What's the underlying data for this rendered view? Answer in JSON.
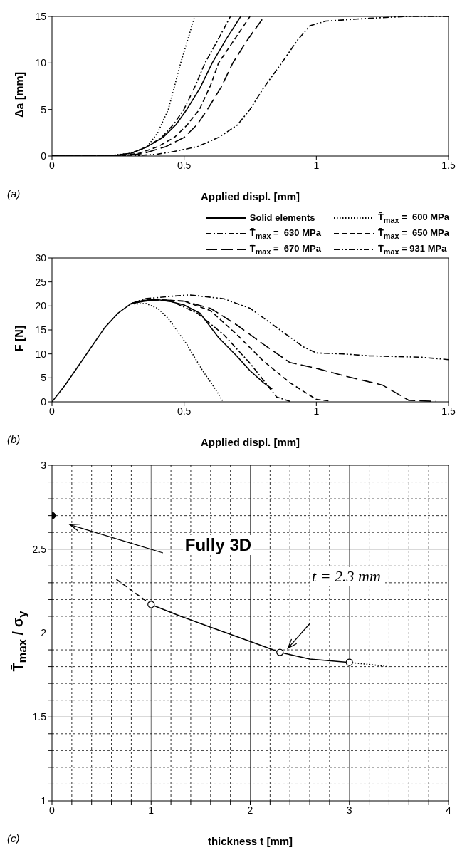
{
  "chart_data": [
    {
      "type": "line",
      "xlabel": "Applied displ. [mm]",
      "ylabel": "Δa [mm]",
      "xlim": [
        0,
        1.5
      ],
      "ylim": [
        0,
        15
      ],
      "xticks": [
        0,
        0.5,
        1,
        1.5
      ],
      "yticks": [
        0,
        5,
        10,
        15
      ],
      "marker": "none",
      "annotations": [
        "(a)"
      ],
      "series": [
        {
          "color": "#000000",
          "line_style": "solid",
          "x": [
            0,
            0.22,
            0.3,
            0.36,
            0.42,
            0.47,
            0.51,
            0.56,
            0.606,
            0.66,
            0.714
          ],
          "values": [
            0,
            0,
            0.3,
            1,
            2,
            3.4,
            5,
            7.3,
            10,
            12.6,
            15
          ]
        },
        {
          "color": "#000000",
          "line_style": "dotted",
          "x": [
            0,
            0.2,
            0.3,
            0.36,
            0.4,
            0.44,
            0.487,
            0.54
          ],
          "values": [
            0,
            0,
            0.3,
            1,
            2.5,
            5,
            10,
            15
          ]
        },
        {
          "color": "#000000",
          "line_style": "dashdot",
          "x": [
            0,
            0.22,
            0.3,
            0.36,
            0.415,
            0.46,
            0.499,
            0.54,
            0.579,
            0.63,
            0.675
          ],
          "values": [
            0,
            0,
            0.3,
            1,
            2,
            3.4,
            5,
            7.4,
            10,
            12.6,
            15
          ]
        },
        {
          "color": "#000000",
          "line_style": "dashed",
          "x": [
            0,
            0.25,
            0.33,
            0.4,
            0.463,
            0.51,
            0.558,
            0.6,
            0.63,
            0.69,
            0.749
          ],
          "values": [
            0,
            0,
            0.3,
            1,
            2,
            3.3,
            5,
            7.6,
            10,
            12.5,
            15
          ]
        },
        {
          "color": "#000000",
          "line_style": "longdash",
          "x": [
            0,
            0.27,
            0.35,
            0.43,
            0.5,
            0.55,
            0.588,
            0.64,
            0.684,
            0.74,
            0.803
          ],
          "values": [
            0,
            0,
            0.3,
            1,
            2,
            3.4,
            5,
            7.4,
            10,
            12.5,
            15
          ]
        },
        {
          "color": "#000000",
          "line_style": "dashdotdot",
          "x": [
            0,
            0.3,
            0.4,
            0.463,
            0.55,
            0.63,
            0.7,
            0.749,
            0.8,
            0.869,
            0.93,
            0.976,
            1.036,
            1.2,
            1.346,
            1.5
          ],
          "values": [
            0,
            0,
            0.2,
            0.5,
            1,
            2,
            3.3,
            5,
            7.3,
            10,
            12.5,
            14,
            14.5,
            14.8,
            15,
            15
          ]
        }
      ]
    },
    {
      "type": "line",
      "xlabel": "Applied displ. [mm]",
      "ylabel": "F [N]",
      "xlim": [
        0,
        1.5
      ],
      "ylim": [
        0,
        30
      ],
      "xticks": [
        0,
        0.5,
        1,
        1.5
      ],
      "yticks": [
        0,
        5,
        10,
        15,
        20,
        25,
        30
      ],
      "marker": "none",
      "legend": "top",
      "annotations": [
        "(b)"
      ],
      "series": [
        {
          "name": "Solid elements",
          "color": "#000000",
          "line_style": "solid",
          "x": [
            0,
            0.05,
            0.1,
            0.15,
            0.2,
            0.25,
            0.3,
            0.35,
            0.4,
            0.45,
            0.5,
            0.56,
            0.63,
            0.7,
            0.749,
            0.8,
            0.833
          ],
          "values": [
            0,
            3.5,
            7.5,
            11.5,
            15.5,
            18.5,
            20.5,
            21,
            21.3,
            20.9,
            20.2,
            18.5,
            13.4,
            9.5,
            6.5,
            4,
            2.7
          ]
        },
        {
          "name": "T̄$_{max}$ =  600 MPa",
          "color": "#000000",
          "line_style": "dotted",
          "x": [
            0.3,
            0.356,
            0.4,
            0.44,
            0.51,
            0.57,
            0.62,
            0.648
          ],
          "values": [
            20.4,
            20.5,
            19.5,
            17.4,
            12,
            6.5,
            2.5,
            0
          ]
        },
        {
          "name": "T̄$_{max}$ =  630 MPa",
          "color": "#000000",
          "line_style": "dashdot",
          "x": [
            0.3,
            0.35,
            0.45,
            0.55,
            0.65,
            0.75,
            0.85,
            0.9
          ],
          "values": [
            20.5,
            21.2,
            21,
            18.5,
            14,
            8,
            1,
            0.1
          ]
        },
        {
          "name": "T̄$_{max}$ =  650 MPa",
          "color": "#000000",
          "line_style": "dashed",
          "x": [
            0.3,
            0.35,
            0.4,
            0.5,
            0.6,
            0.7,
            0.8,
            0.9,
            1,
            1.05
          ],
          "values": [
            20.5,
            21.2,
            21.3,
            21,
            19,
            14,
            8.5,
            4,
            0.5,
            0.2
          ]
        },
        {
          "name": "T̄$_{max}$ =  670 MPa",
          "color": "#000000",
          "line_style": "longdash",
          "x": [
            0.3,
            0.35,
            0.4,
            0.5,
            0.6,
            0.7,
            0.8,
            0.9,
            1,
            1.1,
            1.25,
            1.35,
            1.45
          ],
          "values": [
            20.5,
            21.2,
            21.3,
            21,
            19.5,
            16,
            12,
            8.2,
            7,
            5.5,
            3.5,
            0.3,
            0.1
          ]
        },
        {
          "name": "T̄$_{max}$ = 931 MPa",
          "color": "#000000",
          "line_style": "dashdotdot",
          "x": [
            0.3,
            0.35,
            0.45,
            0.52,
            0.65,
            0.75,
            0.85,
            0.95,
            1,
            1.1,
            1.2,
            1.4,
            1.5
          ],
          "values": [
            20.5,
            21.5,
            22,
            22.3,
            21.5,
            19.5,
            15.5,
            11.5,
            10.2,
            10,
            9.6,
            9.3,
            8.8
          ]
        }
      ]
    },
    {
      "type": "line",
      "xlabel": "thickness t [mm]",
      "ylabel": "T̄$_{max}$ / σ$_{y}$",
      "xlim": [
        0,
        4
      ],
      "ylim": [
        1,
        3
      ],
      "xticks": [
        0,
        {
          "value": 0.2,
          "label": null
        },
        {
          "value": 0.4,
          "label": null
        },
        {
          "value": 0.6,
          "label": null
        },
        {
          "value": 0.8,
          "label": null
        },
        1,
        {
          "value": 1.2,
          "label": null
        },
        {
          "value": 1.4,
          "label": null
        },
        {
          "value": 1.6,
          "label": null
        },
        {
          "value": 1.8,
          "label": null
        },
        2,
        {
          "value": 2.2,
          "label": null
        },
        {
          "value": 2.4,
          "label": null
        },
        {
          "value": 2.6,
          "label": null
        },
        {
          "value": 2.8,
          "label": null
        },
        3,
        {
          "value": 3.2,
          "label": null
        },
        {
          "value": 3.4,
          "label": null
        },
        {
          "value": 3.6,
          "label": null
        },
        {
          "value": 3.8,
          "label": null
        },
        4
      ],
      "yticks": [
        1,
        {
          "value": 1.1,
          "label": null
        },
        {
          "value": 1.2,
          "label": null
        },
        {
          "value": 1.3,
          "label": null
        },
        {
          "value": 1.4,
          "label": null
        },
        1.5,
        {
          "value": 1.6,
          "label": null
        },
        {
          "value": 1.7,
          "label": null
        },
        {
          "value": 1.8,
          "label": null
        },
        {
          "value": 1.9,
          "label": null
        },
        2,
        {
          "value": 2.1,
          "label": null
        },
        {
          "value": 2.2,
          "label": null
        },
        {
          "value": 2.3,
          "label": null
        },
        {
          "value": 2.4,
          "label": null
        },
        2.5,
        {
          "value": 2.6,
          "label": null
        },
        {
          "value": 2.7,
          "label": null
        },
        {
          "value": 2.8,
          "label": null
        },
        {
          "value": 2.9,
          "label": null
        },
        3
      ],
      "grid": true,
      "marker": "none",
      "annotations": [
        "(c)",
        "Fully 3D",
        "t = 2.3 mm"
      ],
      "series": [
        {
          "color": "#000000",
          "line_style": "solid",
          "x": [
            1,
            1.3,
            1.6,
            2,
            2.3,
            2.6,
            3
          ],
          "values": [
            2.17,
            2.1,
            2.035,
            1.95,
            1.885,
            1.845,
            1.825
          ]
        },
        {
          "color": "#000000",
          "line_style": "dashed",
          "x": [
            0.65,
            1
          ],
          "values": [
            2.32,
            2.17
          ]
        },
        {
          "color": "#000000",
          "line_style": "dotted",
          "x": [
            3,
            3.4
          ],
          "values": [
            1.825,
            1.8
          ]
        },
        {
          "type": "scatter",
          "color": "#ffffff",
          "marker": "circle",
          "x": [
            1,
            2.3,
            3
          ],
          "values": [
            2.17,
            1.885,
            1.825
          ]
        },
        {
          "type": "scatter",
          "color": "#000000",
          "marker": "circle",
          "x": [
            0
          ],
          "values": [
            2.7
          ]
        }
      ]
    }
  ]
}
